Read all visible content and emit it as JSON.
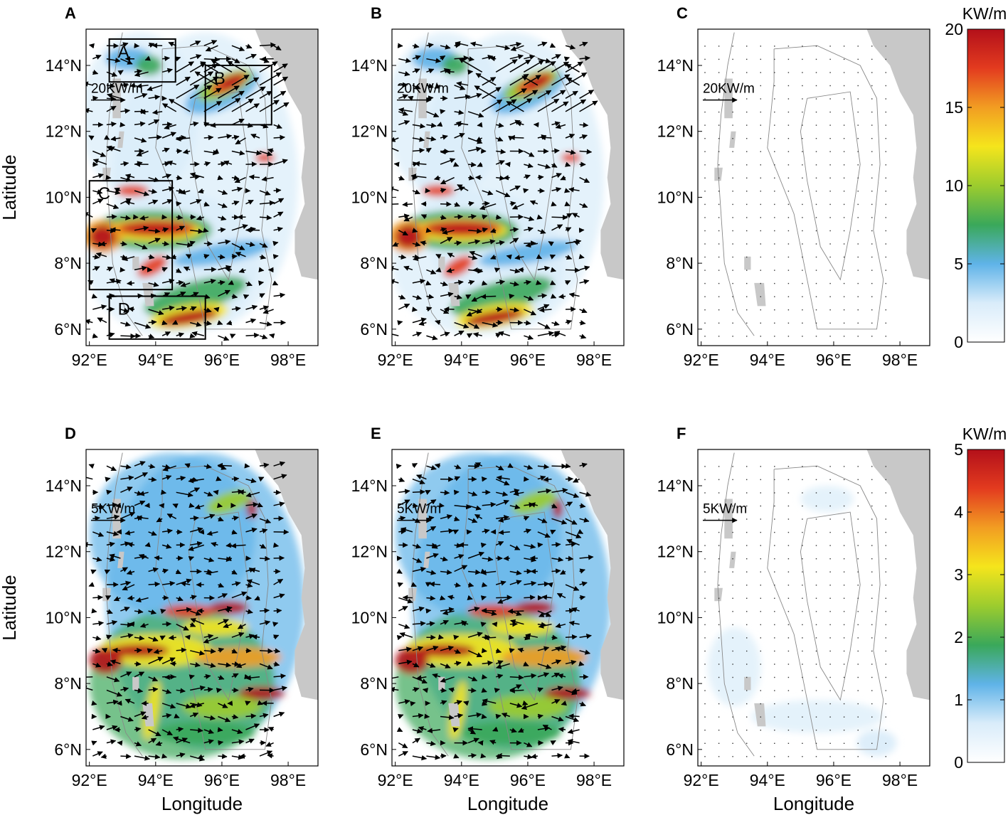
{
  "figure": {
    "y_axis_label": "Latitude",
    "x_axis_label": "Longitude",
    "lat_ticks": [
      "6°N",
      "8°N",
      "10°N",
      "12°N",
      "14°N"
    ],
    "lon_ticks": [
      "92°E",
      "94°E",
      "96°E",
      "98°E"
    ],
    "lat_values": [
      6,
      8,
      10,
      12,
      14
    ],
    "lon_values": [
      92,
      94,
      96,
      98
    ],
    "lon_range": [
      91.9,
      98.9
    ],
    "lat_range": [
      5.5,
      15.1
    ]
  },
  "panels": [
    {
      "label": "A",
      "ref_arrow": "20KW/m",
      "row": 0,
      "col": 0,
      "intensity": "high",
      "boxes": [
        {
          "label": "A",
          "lon": [
            92.6,
            94.6
          ],
          "lat": [
            13.5,
            14.8
          ]
        },
        {
          "label": "B",
          "lon": [
            95.5,
            97.5
          ],
          "lat": [
            12.2,
            14.0
          ]
        },
        {
          "label": "C",
          "lon": [
            92.0,
            94.5
          ],
          "lat": [
            7.2,
            10.5
          ]
        },
        {
          "label": "D",
          "lon": [
            92.6,
            95.5
          ],
          "lat": [
            5.7,
            7.0
          ]
        }
      ]
    },
    {
      "label": "B",
      "ref_arrow": "20KW/m",
      "row": 0,
      "col": 1,
      "intensity": "high",
      "boxes": []
    },
    {
      "label": "C",
      "ref_arrow": "20KW/m",
      "row": 0,
      "col": 2,
      "intensity": "none",
      "boxes": []
    },
    {
      "label": "D",
      "ref_arrow": "5KW/m",
      "row": 1,
      "col": 0,
      "intensity": "high",
      "boxes": []
    },
    {
      "label": "E",
      "ref_arrow": "5KW/m",
      "row": 1,
      "col": 1,
      "intensity": "high",
      "boxes": []
    },
    {
      "label": "F",
      "ref_arrow": "5KW/m",
      "row": 1,
      "col": 2,
      "intensity": "low",
      "boxes": []
    }
  ],
  "colorbars": [
    {
      "unit": "KW/m",
      "min": 0,
      "max": 20,
      "ticks": [
        "0",
        "5",
        "10",
        "15",
        "20"
      ],
      "tick_values": [
        0,
        5,
        10,
        15,
        20
      ]
    },
    {
      "unit": "KW/m",
      "min": 0,
      "max": 5,
      "ticks": [
        "0",
        "1",
        "2",
        "3",
        "4",
        "5"
      ],
      "tick_values": [
        0,
        1,
        2,
        3,
        4,
        5
      ]
    }
  ],
  "colormap": [
    "#ffffff",
    "#d9ecfa",
    "#5fb3e8",
    "#3aa85a",
    "#9ccc2e",
    "#f5e51c",
    "#f29d22",
    "#e33b1f",
    "#b3101a"
  ],
  "land_color": "#c8c8c8",
  "contour_color": "#888888",
  "vector_color": "#000000"
}
